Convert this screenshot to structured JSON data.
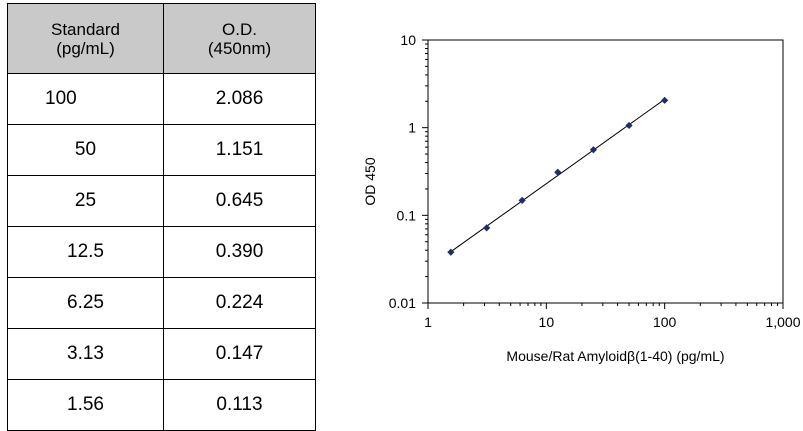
{
  "table": {
    "headers": [
      [
        "Standard",
        "(pg/mL)"
      ],
      [
        "O.D.",
        "(450nm)"
      ]
    ],
    "rows": [
      [
        "100",
        "2.086"
      ],
      [
        "50",
        "1.151"
      ],
      [
        "25",
        "0.645"
      ],
      [
        "12.5",
        "0.390"
      ],
      [
        "6.25",
        "0.224"
      ],
      [
        "3.13",
        "0.147"
      ],
      [
        "1.56",
        "0.113"
      ]
    ]
  },
  "chart_data": {
    "type": "scatter",
    "xlabel": "Mouse/Rat Amyloidβ(1-40) (pg/mL)",
    "ylabel": "OD 450",
    "xscale": "log",
    "yscale": "log",
    "xlim": [
      1,
      1000
    ],
    "ylim": [
      0.01,
      10
    ],
    "xtick_labels": [
      "1",
      "10",
      "100",
      "1,000"
    ],
    "ytick_labels": [
      "0.01",
      "0.1",
      "1",
      "10"
    ],
    "x": [
      1.56,
      3.13,
      6.25,
      12.5,
      25,
      50,
      100
    ],
    "y": [
      0.038,
      0.072,
      0.148,
      0.31,
      0.56,
      1.06,
      2.05
    ],
    "trendline": true,
    "grid": false,
    "colors": {
      "marker": "#1f2f6e",
      "line": "#000000"
    }
  }
}
